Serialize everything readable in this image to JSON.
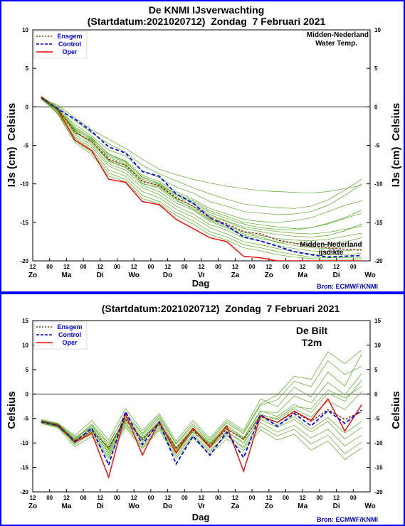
{
  "colors": {
    "frame": "#0000ff",
    "member": "#55aa22",
    "ensgem": "#8b2a0a",
    "control": "#0000ee",
    "oper": "#ff0000",
    "bron": "#0000cc",
    "legend_blue": "#0000ff",
    "legend_red": "#ff0000",
    "zero_line": "#000000"
  },
  "x_labels": {
    "hours": [
      "12",
      "00",
      "12",
      "00",
      "12",
      "00",
      "12",
      "00",
      "12",
      "00",
      "12",
      "00",
      "12",
      "00",
      "12",
      "00",
      "12",
      "00",
      "12",
      "00"
    ],
    "days": [
      "Zo",
      "Ma",
      "Di",
      "Wo",
      "Do",
      "Vr",
      "Za",
      "Zo",
      "Ma",
      "Di",
      "Wo"
    ],
    "axis_title": "Dag"
  },
  "bron": "Bron: ECMWF/KNMI",
  "chart_data": [
    {
      "type": "line",
      "title": "De KNMI IJsverwachting",
      "subtitle": "(Startdatum:2021020712)  Zondag  7 Februari 2021",
      "location": "Midden-Nederland",
      "variable": "Water Temp.",
      "annotation": [
        "Midden-Nederland",
        "ijsdikte"
      ],
      "ylabel_left": "IJs (cm)  Celsius",
      "ylabel_right": "IJs (cm)  Celsius",
      "xlabel": "Dag",
      "ylim": [
        -20,
        10
      ],
      "yticks": [
        10,
        5,
        0,
        -5,
        -10,
        -15,
        -20
      ],
      "grid": false,
      "legend": [
        "Ensgem",
        "Control",
        "Oper"
      ],
      "legend_position": "top-left",
      "x": [
        0,
        1,
        2,
        3,
        4,
        5,
        6,
        7,
        8,
        9,
        10,
        11,
        12,
        13,
        14,
        15,
        16,
        17,
        18,
        19
      ],
      "series": [
        {
          "name": "Ensgem",
          "values": [
            1.2,
            -0.4,
            -3.3,
            -4.5,
            -6.8,
            -7.6,
            -9.7,
            -10.2,
            -11.8,
            -12.9,
            -14.4,
            -15.2,
            -16.2,
            -16.5,
            -17.3,
            -17.7,
            -18.1,
            -18.3,
            -18.5,
            -18.6
          ]
        },
        {
          "name": "Control",
          "values": [
            1.2,
            -0.3,
            -1.6,
            -3.2,
            -5.2,
            -6.0,
            -8.4,
            -9.0,
            -11.3,
            -12.5,
            -14.4,
            -15.4,
            -16.9,
            -17.4,
            -18.1,
            -18.8,
            -19.2,
            -19.5,
            -19.4,
            -19.3
          ]
        },
        {
          "name": "Oper",
          "values": [
            1.3,
            -0.4,
            -4.3,
            -5.7,
            -9.4,
            -9.8,
            -12.3,
            -12.7,
            -14.6,
            -15.8,
            -17.0,
            -17.5,
            -19.4,
            -19.6,
            -20.0,
            -20.0,
            -20.0,
            -20.0,
            -20.0,
            -20.0
          ]
        }
      ],
      "members": [
        [
          1.1,
          0.2,
          -1.4,
          -3.0,
          -4.2,
          -5.4,
          -6.8,
          -8.1,
          -8.8,
          -9.4,
          -9.9,
          -10.3,
          -10.6,
          -10.9,
          -11.0,
          -11.1,
          -11.2,
          -11.0,
          -10.6,
          -10.2
        ],
        [
          1.3,
          0.0,
          -1.8,
          -3.4,
          -4.8,
          -5.9,
          -7.6,
          -8.7,
          -9.6,
          -10.5,
          -11.3,
          -12.0,
          -12.6,
          -12.9,
          -13.1,
          -13.2,
          -12.9,
          -12.1,
          -10.8,
          -9.4
        ],
        [
          1.2,
          -0.2,
          -2.3,
          -3.8,
          -5.6,
          -6.4,
          -8.3,
          -9.2,
          -10.4,
          -11.2,
          -12.3,
          -12.9,
          -13.6,
          -13.8,
          -14.0,
          -13.9,
          -13.6,
          -12.8,
          -11.5,
          -10.0
        ],
        [
          1.4,
          -0.1,
          -2.6,
          -4.1,
          -6.1,
          -7.0,
          -8.9,
          -9.7,
          -11.0,
          -12.0,
          -13.2,
          -13.9,
          -14.6,
          -14.9,
          -15.0,
          -14.8,
          -14.4,
          -13.6,
          -12.8,
          -12.2
        ],
        [
          1.0,
          -0.4,
          -2.9,
          -4.3,
          -6.4,
          -7.2,
          -9.1,
          -10.0,
          -11.4,
          -12.4,
          -13.7,
          -14.5,
          -15.2,
          -15.7,
          -15.9,
          -16.0,
          -15.7,
          -15.1,
          -14.4,
          -13.4
        ],
        [
          1.2,
          -0.5,
          -3.1,
          -4.6,
          -6.9,
          -7.5,
          -9.6,
          -10.3,
          -11.9,
          -12.9,
          -14.2,
          -14.9,
          -15.8,
          -16.2,
          -16.6,
          -16.8,
          -16.9,
          -16.7,
          -16.1,
          -15.2
        ],
        [
          1.3,
          -0.3,
          -3.4,
          -4.4,
          -7.1,
          -7.9,
          -9.9,
          -10.6,
          -12.2,
          -13.1,
          -14.6,
          -15.4,
          -16.3,
          -16.7,
          -17.1,
          -17.3,
          -17.4,
          -17.2,
          -16.8,
          -16.4
        ],
        [
          1.1,
          -0.6,
          -3.6,
          -5.0,
          -7.4,
          -8.2,
          -10.2,
          -11.0,
          -12.5,
          -13.4,
          -14.9,
          -15.7,
          -16.7,
          -17.1,
          -17.5,
          -17.7,
          -17.9,
          -17.8,
          -17.5,
          -17.0
        ],
        [
          1.2,
          -0.2,
          -3.2,
          -4.8,
          -7.0,
          -7.8,
          -10.0,
          -10.4,
          -12.0,
          -13.3,
          -14.7,
          -15.6,
          -16.5,
          -16.9,
          -17.6,
          -18.0,
          -18.3,
          -18.4,
          -18.2,
          -17.9
        ],
        [
          1.4,
          -0.7,
          -3.9,
          -5.3,
          -7.7,
          -8.6,
          -10.5,
          -11.4,
          -12.9,
          -13.9,
          -15.3,
          -16.0,
          -17.0,
          -17.4,
          -18.0,
          -18.4,
          -18.7,
          -18.8,
          -18.7,
          -18.5
        ],
        [
          1.0,
          -0.8,
          -4.1,
          -5.6,
          -8.2,
          -9.0,
          -11.0,
          -11.8,
          -13.3,
          -14.3,
          -15.7,
          -16.5,
          -17.5,
          -17.9,
          -18.4,
          -18.8,
          -19.1,
          -19.2,
          -19.2,
          -19.0
        ],
        [
          1.3,
          -0.9,
          -4.4,
          -5.9,
          -8.6,
          -9.4,
          -11.5,
          -12.3,
          -13.7,
          -14.8,
          -16.2,
          -16.9,
          -17.9,
          -18.3,
          -18.8,
          -19.2,
          -19.5,
          -19.6,
          -19.6,
          -19.5
        ],
        [
          1.2,
          -1.0,
          -4.6,
          -6.2,
          -9.0,
          -9.7,
          -11.9,
          -12.6,
          -14.1,
          -15.2,
          -16.6,
          -17.3,
          -18.3,
          -18.7,
          -19.2,
          -19.5,
          -19.7,
          -19.8,
          -19.8,
          -19.7
        ],
        [
          1.1,
          -0.4,
          -3.0,
          -4.2,
          -6.6,
          -7.4,
          -9.4,
          -10.1,
          -11.6,
          -12.6,
          -14.0,
          -14.8,
          -15.6,
          -15.9,
          -16.2,
          -16.4,
          -16.5,
          -16.3,
          -15.9,
          -15.5
        ],
        [
          1.3,
          -0.3,
          -2.8,
          -4.0,
          -6.2,
          -7.1,
          -9.2,
          -9.9,
          -11.3,
          -12.2,
          -13.5,
          -14.2,
          -15.0,
          -15.3,
          -15.6,
          -15.8,
          -15.7,
          -15.2,
          -14.5,
          -13.8
        ]
      ]
    },
    {
      "type": "line",
      "title": "(Startdatum:2021020712)  Zondag  7 Februari 2021",
      "location": "De Bilt",
      "variable": "T2m",
      "ylabel_left": "Celsius",
      "ylabel_right": "Celsius",
      "xlabel": "Dag",
      "ylim": [
        -20,
        15
      ],
      "yticks": [
        15,
        10,
        5,
        0,
        -5,
        -10,
        -15,
        -20
      ],
      "grid": false,
      "legend": [
        "Ensgem",
        "Control",
        "Oper"
      ],
      "legend_position": "top-left",
      "x": [
        0,
        1,
        2,
        3,
        4,
        5,
        6,
        7,
        8,
        9,
        10,
        11,
        12,
        13,
        14,
        15,
        16,
        17,
        18,
        19
      ],
      "series": [
        {
          "name": "Ensgem",
          "values": [
            -5.6,
            -6.3,
            -9.6,
            -7.5,
            -11.0,
            -5.2,
            -9.3,
            -6.0,
            -11.0,
            -7.4,
            -10.5,
            -7.2,
            -9.2,
            -4.6,
            -5.8,
            -3.7,
            -5.6,
            -3.2,
            -5.2,
            -3.6
          ]
        },
        {
          "name": "Control",
          "values": [
            -5.7,
            -6.4,
            -9.7,
            -7.0,
            -14.5,
            -3.6,
            -10.3,
            -5.8,
            -14.3,
            -8.6,
            -12.5,
            -7.8,
            -13.0,
            -4.2,
            -6.6,
            -4.0,
            -6.5,
            -3.4,
            -6.0,
            -3.3
          ]
        },
        {
          "name": "Oper",
          "values": [
            -5.6,
            -6.5,
            -9.8,
            -8.0,
            -17.0,
            -4.0,
            -12.5,
            -5.6,
            -12.0,
            -7.0,
            -10.9,
            -6.5,
            -15.8,
            -4.5,
            -5.8,
            -3.5,
            -5.4,
            -1.0,
            -7.6,
            -2.2
          ]
        }
      ],
      "members": [
        [
          -5.2,
          -6.0,
          -8.5,
          -5.4,
          -9.4,
          -3.0,
          -7.5,
          -4.0,
          -9.6,
          -5.4,
          -9.0,
          -5.2,
          -7.4,
          -1.0,
          -2.6,
          1.4,
          -0.6,
          4.5,
          1.6,
          8.2
        ],
        [
          -5.8,
          -6.6,
          -9.2,
          -6.1,
          -10.0,
          -4.3,
          -8.2,
          -4.8,
          -10.3,
          -6.5,
          -9.7,
          -5.9,
          -8.1,
          -2.3,
          -1.2,
          2.6,
          1.5,
          6.8,
          4.0,
          5.6
        ],
        [
          -5.4,
          -6.2,
          -10.4,
          -7.8,
          -12.4,
          -6.0,
          -10.6,
          -6.7,
          -12.2,
          -8.3,
          -11.4,
          -8.6,
          -10.8,
          -5.8,
          -7.8,
          -6.4,
          -9.0,
          -7.2,
          -10.6,
          -8.4
        ],
        [
          -6.0,
          -6.9,
          -10.8,
          -8.6,
          -13.2,
          -6.8,
          -11.2,
          -7.4,
          -13.1,
          -9.0,
          -12.3,
          -9.2,
          -11.6,
          -7.3,
          -9.4,
          -8.2,
          -11.5,
          -9.6,
          -13.4,
          -11.0
        ],
        [
          -5.5,
          -6.3,
          -9.0,
          -6.6,
          -10.8,
          -4.9,
          -8.6,
          -5.1,
          -10.9,
          -6.9,
          -10.0,
          -6.4,
          -8.9,
          -3.4,
          -4.6,
          -2.1,
          -3.8,
          0.2,
          -1.5,
          2.8
        ],
        [
          -5.3,
          -6.1,
          -8.8,
          -6.9,
          -11.4,
          -5.5,
          -9.0,
          -5.5,
          -11.5,
          -7.3,
          -10.3,
          -7.0,
          -9.4,
          -4.1,
          -5.3,
          -3.0,
          -4.7,
          -1.4,
          -3.2,
          0.5
        ],
        [
          -5.9,
          -6.8,
          -10.1,
          -7.4,
          -12.0,
          -5.8,
          -9.9,
          -6.2,
          -12.0,
          -7.8,
          -10.8,
          -7.6,
          -10.2,
          -4.8,
          -6.3,
          -4.6,
          -7.2,
          -4.8,
          -8.0,
          -5.6
        ],
        [
          -5.6,
          -6.4,
          -9.5,
          -7.0,
          -11.1,
          -4.6,
          -9.4,
          -5.8,
          -11.1,
          -7.1,
          -10.1,
          -6.8,
          -9.0,
          -3.6,
          -3.8,
          -0.4,
          -1.8,
          2.4,
          -0.2,
          4.2
        ],
        [
          -5.7,
          -6.5,
          -9.9,
          -8.2,
          -12.8,
          -6.4,
          -10.9,
          -7.0,
          -12.6,
          -8.6,
          -11.8,
          -8.2,
          -11.1,
          -6.6,
          -8.6,
          -7.2,
          -10.2,
          -8.4,
          -12.2,
          -9.8
        ],
        [
          -5.5,
          -6.2,
          -9.3,
          -6.4,
          -10.4,
          -3.8,
          -8.0,
          -4.4,
          -10.1,
          -6.1,
          -9.4,
          -5.6,
          -7.8,
          -2.0,
          -0.2,
          3.6,
          3.0,
          8.6,
          6.2,
          9.0
        ],
        [
          -5.8,
          -6.7,
          -10.0,
          -7.6,
          -11.7,
          -5.2,
          -9.6,
          -6.4,
          -11.8,
          -7.6,
          -11.0,
          -7.8,
          -9.8,
          -5.2,
          -6.8,
          -5.2,
          -7.8,
          -5.6,
          -9.2,
          -6.8
        ],
        [
          -5.6,
          -6.3,
          -9.4,
          -7.2,
          -11.2,
          -4.9,
          -9.1,
          -5.7,
          -11.3,
          -7.2,
          -10.4,
          -7.1,
          -9.3,
          -4.4,
          -5.0,
          -2.6,
          -3.0,
          0.8,
          -0.8,
          1.6
        ]
      ]
    }
  ]
}
